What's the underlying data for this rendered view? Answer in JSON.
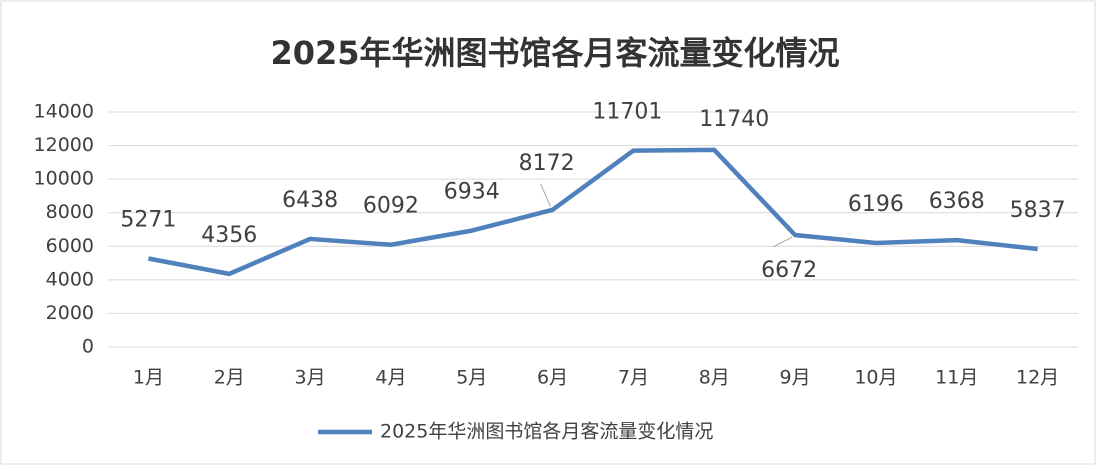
{
  "chart_data": {
    "type": "line",
    "title": "2025年华洲图书馆各月客流量变化情况",
    "categories": [
      "1月",
      "2月",
      "3月",
      "4月",
      "5月",
      "6月",
      "7月",
      "8月",
      "9月",
      "10月",
      "11月",
      "12月"
    ],
    "series": [
      {
        "name": "2025年华洲图书馆各月客流量变化情况",
        "color": "#4f81bd",
        "values": [
          5271,
          4356,
          6438,
          6092,
          6934,
          8172,
          11701,
          11740,
          6672,
          6196,
          6368,
          5837
        ]
      }
    ],
    "ylim": [
      0,
      14000
    ],
    "yticks": [
      0,
      2000,
      4000,
      6000,
      8000,
      10000,
      12000,
      14000
    ],
    "grid": true,
    "legend": "bottom",
    "data_labels": true
  }
}
